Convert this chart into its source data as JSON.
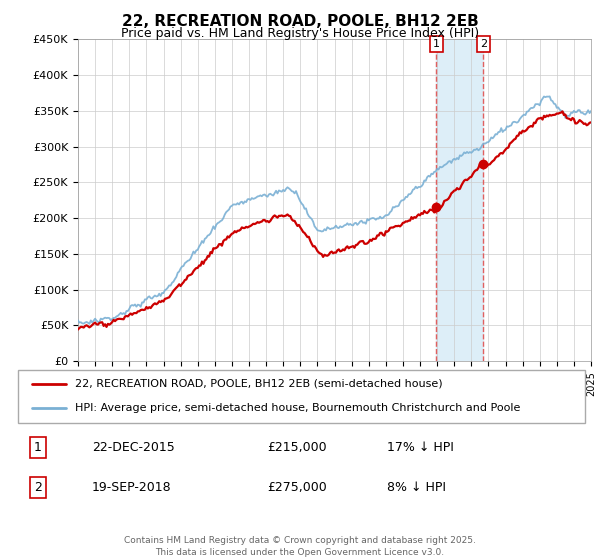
{
  "title": "22, RECREATION ROAD, POOLE, BH12 2EB",
  "subtitle": "Price paid vs. HM Land Registry's House Price Index (HPI)",
  "legend_line1": "22, RECREATION ROAD, POOLE, BH12 2EB (semi-detached house)",
  "legend_line2": "HPI: Average price, semi-detached house, Bournemouth Christchurch and Poole",
  "sale1_label": "1",
  "sale1_date": "22-DEC-2015",
  "sale1_price": "£215,000",
  "sale1_hpi": "17% ↓ HPI",
  "sale2_label": "2",
  "sale2_date": "19-SEP-2018",
  "sale2_price": "£275,000",
  "sale2_hpi": "8% ↓ HPI",
  "footer": "Contains HM Land Registry data © Crown copyright and database right 2025.\nThis data is licensed under the Open Government Licence v3.0.",
  "red_color": "#cc0000",
  "blue_color": "#7ab0d4",
  "highlight_color": "#ddeef8",
  "dashed_color": "#e06060",
  "ylim": [
    0,
    450000
  ],
  "yticks": [
    0,
    50000,
    100000,
    150000,
    200000,
    250000,
    300000,
    350000,
    400000,
    450000
  ],
  "sale1_t": 2015.96,
  "sale2_t": 2018.71,
  "sale1_price_val": 215000,
  "sale2_price_val": 275000
}
